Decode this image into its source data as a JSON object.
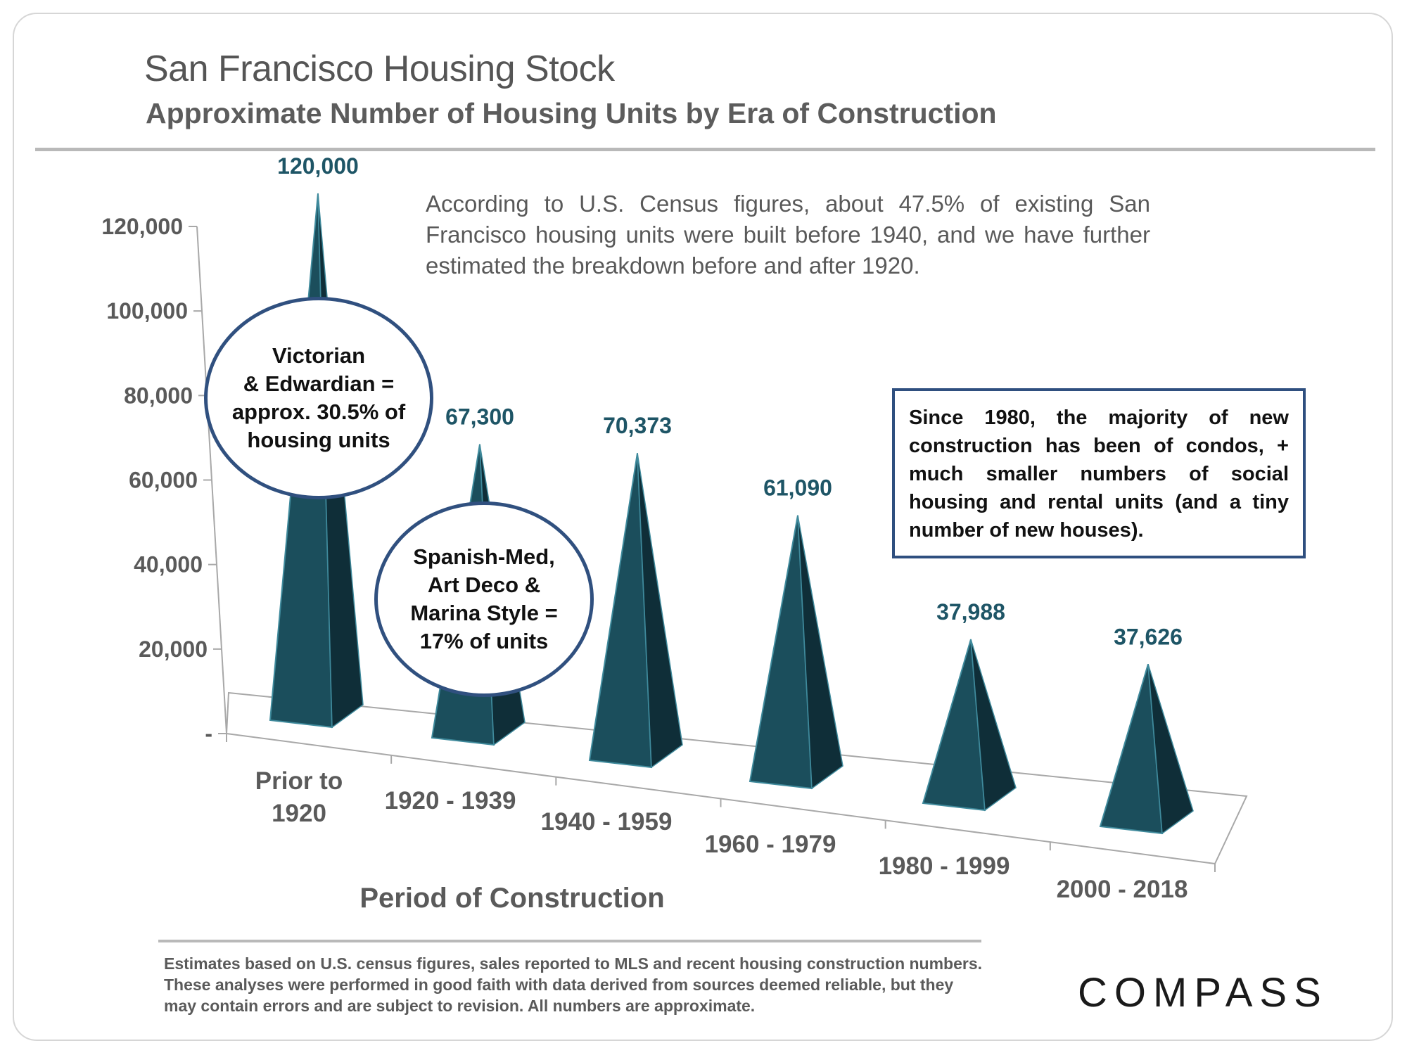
{
  "header": {
    "title": "San Francisco Housing Stock",
    "subtitle": "Approximate Number of Housing Units by Era of Construction"
  },
  "annotations": {
    "intro": "According to U.S. Census figures, about 47.5% of existing San Francisco housing units were built before 1940, and we have further estimated the breakdown before and after 1920.",
    "bubble_victorian": [
      "Victorian",
      "& Edwardian =",
      "approx. 30.5% of",
      "housing units"
    ],
    "bubble_spanish": [
      "Spanish-Med,",
      "Art Deco &",
      "Marina Style =",
      "17% of units"
    ],
    "box_1980": "Since 1980, the majority of new construction has been of condos, + much smaller numbers of social housing and rental units (and a tiny number of new houses)."
  },
  "footer": {
    "note": "Estimates based on U.S. census figures, sales reported to MLS and recent housing construction numbers. These analyses were performed in good faith with data derived from sources deemed reliable, but they may contain errors and are subject to revision. All numbers are approximate.",
    "logo": "COMPASS"
  },
  "colors": {
    "pyramid_front": "#1b4e5c",
    "pyramid_side": "#0f2e38",
    "pyramid_edge": "#3f8a9c",
    "value_label": "#1e5566",
    "bubble_border": "#30507f"
  },
  "chart_data": {
    "type": "bar",
    "style": "3d-pyramid",
    "title": "San Francisco Housing Stock",
    "subtitle": "Approximate Number of Housing Units by Era of Construction",
    "xlabel": "Period of Construction",
    "ylabel": "",
    "categories": [
      [
        "Prior to",
        "1920"
      ],
      [
        "1920 - 1939"
      ],
      [
        "1940 - 1959"
      ],
      [
        "1960 - 1979"
      ],
      [
        "1980 - 1999"
      ],
      [
        "2000 - 2018"
      ]
    ],
    "values": [
      120000,
      67300,
      70373,
      61090,
      37988,
      37626
    ],
    "value_labels": [
      "120,000",
      "67,300",
      "70,373",
      "61,090",
      "37,988",
      "37,626"
    ],
    "ylim": [
      0,
      120000
    ],
    "yticks": [
      0,
      20000,
      40000,
      60000,
      80000,
      100000,
      120000
    ],
    "ytick_labels": [
      "-",
      "20,000",
      "40,000",
      "60,000",
      "80,000",
      "100,000",
      "120,000"
    ],
    "grid": false
  }
}
